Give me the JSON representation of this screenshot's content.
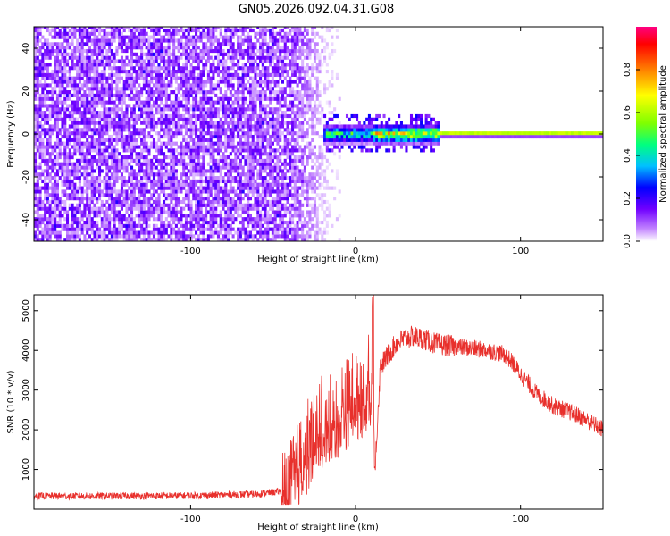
{
  "title": "GN05.2026.092.04.31.G08",
  "chart_data": [
    {
      "type": "heatmap",
      "xlabel": "Height of straight line (km)",
      "ylabel": "Frequency (Hz)",
      "xlim": [
        -195,
        150
      ],
      "ylim": [
        -50,
        50
      ],
      "x_ticks": [
        -100,
        0,
        100
      ],
      "x_tick_labels": [
        "-100",
        "0",
        "100"
      ],
      "y_ticks": [
        -40,
        -20,
        0,
        20,
        40
      ],
      "y_tick_labels": [
        "-40",
        "-20",
        "0",
        "20",
        "40"
      ],
      "colorbar": {
        "label": "Normalized spectral amplitude",
        "range": [
          0,
          1
        ],
        "ticks": [
          0.0,
          0.2,
          0.4,
          0.6,
          0.8
        ],
        "tick_labels": [
          "0.0",
          "0.2",
          "0.4",
          "0.6",
          "0.8"
        ],
        "colors": [
          "#ffffff",
          "#c080ff",
          "#7000ff",
          "#0000ff",
          "#00c0ff",
          "#00ff80",
          "#80ff00",
          "#ffff00",
          "#ff8000",
          "#ff0000",
          "#ff0080"
        ]
      },
      "description_values": {
        "noise_region_x": [
          -195,
          -10
        ],
        "noise_amplitude": 0.35,
        "signal_frequency_hz": 0,
        "signal_start_km": -20,
        "peak_amplitude": 0.9
      }
    },
    {
      "type": "line",
      "xlabel": "Height of straight line (km)",
      "ylabel": "SNR (10 * v/v)",
      "xlim": [
        -195,
        150
      ],
      "ylim": [
        0,
        5400
      ],
      "x_ticks": [
        -100,
        0,
        100
      ],
      "x_tick_labels": [
        "-100",
        "0",
        "100"
      ],
      "y_ticks": [
        1000,
        2000,
        3000,
        4000,
        5000
      ],
      "y_tick_labels": [
        "1000",
        "2000",
        "3000",
        "4000",
        "5000"
      ],
      "series": [
        {
          "name": "SNR",
          "color": "#e8302c",
          "x": [
            -195,
            -150,
            -100,
            -60,
            -45,
            -40,
            -35,
            -30,
            -25,
            -20,
            -15,
            -10,
            -5,
            0,
            5,
            10,
            12,
            15,
            20,
            25,
            30,
            35,
            40,
            50,
            60,
            70,
            80,
            90,
            95,
            100,
            110,
            120,
            130,
            140,
            150
          ],
          "values": [
            330,
            330,
            340,
            380,
            450,
            600,
            1100,
            1600,
            2000,
            2300,
            2300,
            2600,
            2800,
            3000,
            3100,
            3500,
            1200,
            3600,
            3900,
            4200,
            4300,
            4350,
            4300,
            4150,
            4100,
            4050,
            4000,
            3900,
            3700,
            3400,
            2900,
            2600,
            2450,
            2250,
            2000
          ]
        }
      ]
    }
  ]
}
